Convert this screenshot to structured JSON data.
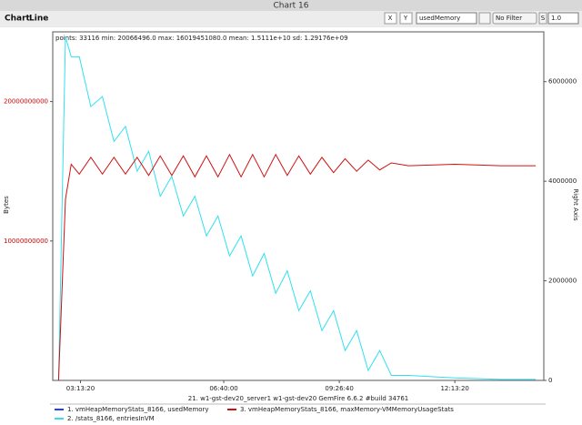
{
  "window": {
    "title": "Chart 16"
  },
  "menu": [
    "Chart",
    "Line"
  ],
  "toolbar": {
    "x_label": "X",
    "y_label": "Y",
    "y_field": "usedMemory",
    "filter": "No Filter",
    "s_label": "S",
    "s_value": "1.0"
  },
  "chart_data": {
    "type": "line",
    "stats": "points: 33116 min: 20066496.0 max: 16019451080.0 mean: 1.5111e+10 sd: 1.29176e+09",
    "ylabel": "Bytes",
    "y2label": "Right Axis",
    "xlabel": "21. w1-gst-dev20_server1 w1-gst-dev20 GemFire 6.6.2 #build 34761",
    "x": [
      9700,
      10300,
      10800,
      11500,
      12500,
      13500,
      14500,
      15500,
      16500,
      17500,
      18500,
      19500,
      20500,
      21500,
      22500,
      23500,
      24500,
      25500,
      26500,
      27500,
      28500,
      29500,
      30500,
      31500,
      32500,
      33500,
      34500,
      35500,
      36500,
      37500,
      38500,
      40000,
      44000,
      48000,
      51000
    ],
    "xlim": [
      9200,
      51700
    ],
    "xticks": [
      {
        "value": 11600,
        "label": "03:13:20"
      },
      {
        "value": 24000,
        "label": "06:40:00"
      },
      {
        "value": 34000,
        "label": "09:26:40"
      },
      {
        "value": 44000,
        "label": "12:13:20"
      }
    ],
    "ylim": [
      0,
      25000000000
    ],
    "yticks": [
      10000000000,
      20000000000
    ],
    "y2lim": [
      0,
      7000000
    ],
    "y2ticks": [
      0,
      2000000,
      4000000,
      6000000
    ],
    "series": [
      {
        "name": "1. vmHeapMemoryStats_8166, usedMemory",
        "color": "#2040ff",
        "values": [
          null,
          null,
          null,
          null,
          null,
          null,
          null,
          null,
          null,
          null,
          null,
          null,
          null,
          null,
          null,
          null,
          null,
          null,
          null,
          null,
          null,
          null,
          null,
          null,
          null,
          null,
          null,
          null,
          null,
          null,
          null,
          null,
          null,
          null,
          null
        ]
      },
      {
        "name": "2. /stats_8166, entriesInVM",
        "color": "#30e0f0",
        "axis": "y2",
        "values": [
          0,
          6900000,
          6500000,
          6500000,
          5500000,
          5700000,
          4800000,
          5100000,
          4200000,
          4600000,
          3700000,
          4100000,
          3300000,
          3700000,
          2900000,
          3300000,
          2500000,
          2900000,
          2100000,
          2550000,
          1750000,
          2200000,
          1400000,
          1800000,
          1000000,
          1400000,
          600000,
          1000000,
          200000,
          600000,
          100000,
          100000,
          50000,
          20000,
          20000
        ]
      },
      {
        "name": "3. vmHeapMemoryStats_8166, maxMemory-VMMemoryUsageStats",
        "color": "#d01010",
        "values": [
          0,
          13000000000,
          15500000000,
          14800000000,
          16000000000,
          14800000000,
          16000000000,
          14800000000,
          16000000000,
          14700000000,
          16100000000,
          14700000000,
          16100000000,
          14600000000,
          16100000000,
          14600000000,
          16200000000,
          14600000000,
          16200000000,
          14600000000,
          16200000000,
          14700000000,
          16100000000,
          14800000000,
          16000000000,
          14900000000,
          15900000000,
          15000000000,
          15800000000,
          15100000000,
          15600000000,
          15400000000,
          15500000000,
          15400000000,
          15400000000
        ]
      }
    ]
  }
}
